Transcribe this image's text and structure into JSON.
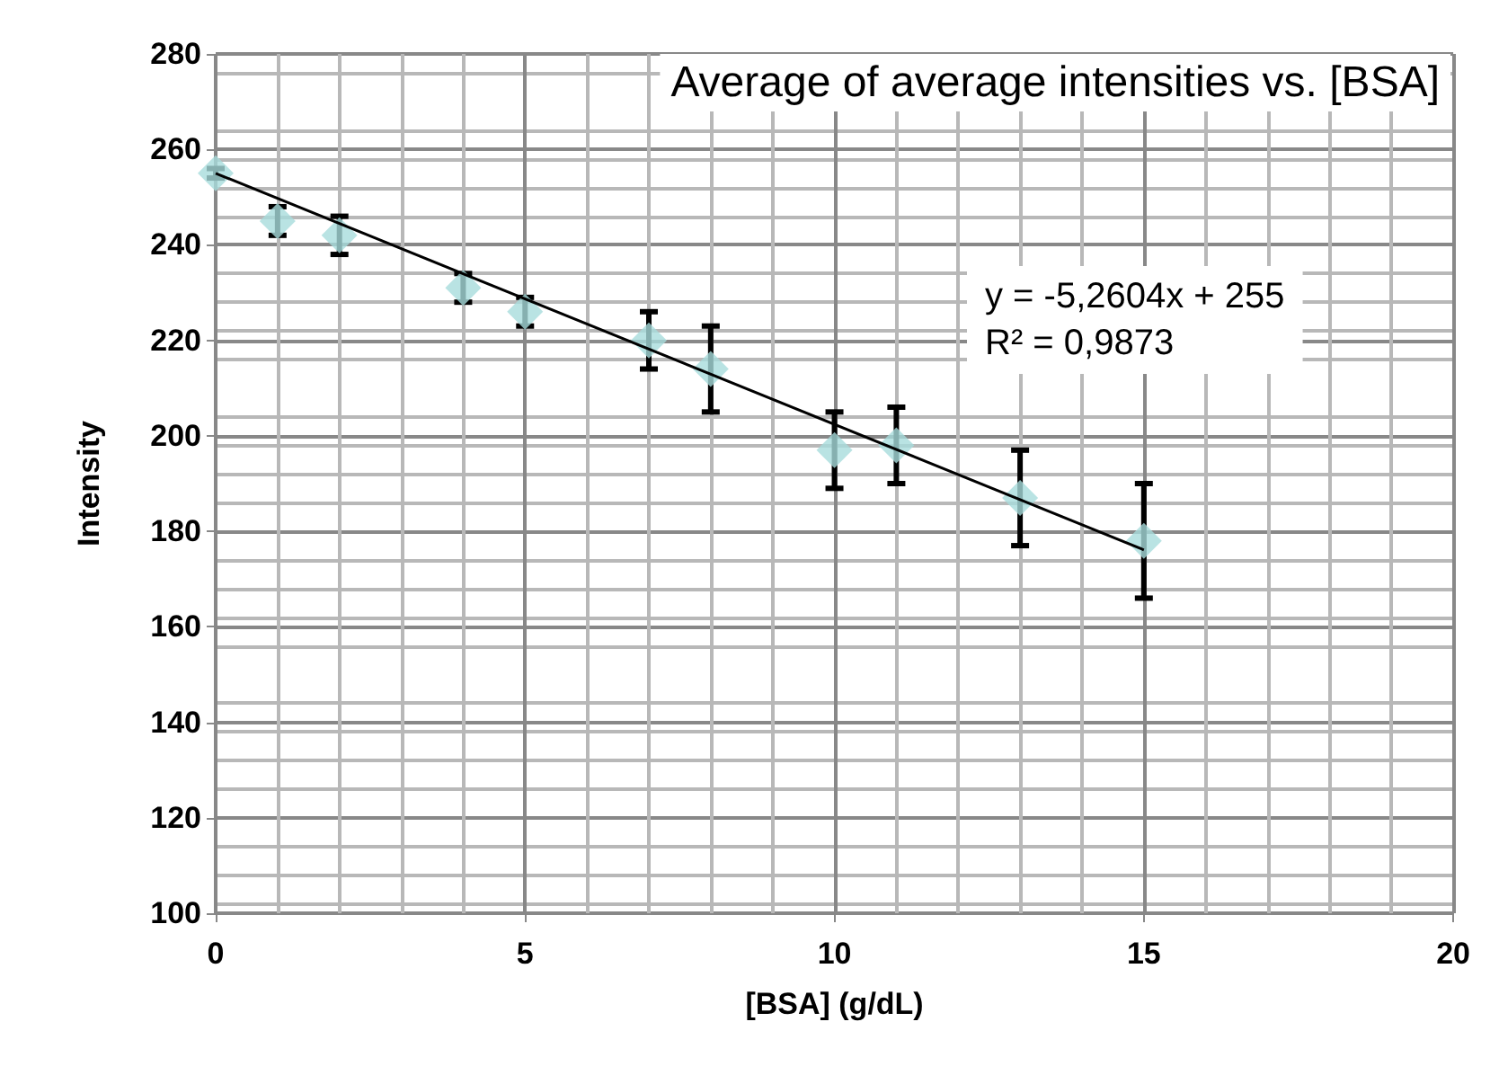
{
  "chart_data": {
    "type": "scatter",
    "title": "Average of average intensities vs. [BSA]",
    "xlabel": "[BSA] (g/dL)",
    "ylabel": "Intensity",
    "x": [
      0,
      1,
      2,
      4,
      5,
      7,
      8,
      10,
      11,
      13,
      15
    ],
    "series": [
      {
        "color": "#a8dcdc",
        "values": [
          255,
          245,
          242,
          231,
          226,
          220,
          214,
          197,
          198,
          187,
          178
        ],
        "errors": [
          1,
          3,
          4,
          3,
          3,
          6,
          9,
          8,
          8,
          10,
          12
        ],
        "marker": "diamond"
      },
      {
        "type": "line",
        "color": "#000000",
        "x": [
          0,
          15
        ],
        "values": [
          255,
          176.1
        ],
        "marker": "none",
        "line_style": "solid"
      }
    ],
    "annotations": [
      "y = -5,2604x + 255",
      "R² = 0,9873"
    ],
    "xlim": [
      0,
      20
    ],
    "xticks": [
      0,
      5,
      10,
      15,
      20
    ],
    "ylim": [
      100,
      280
    ],
    "yticks": [
      100,
      120,
      140,
      160,
      180,
      200,
      220,
      240,
      260,
      280
    ],
    "grid": true
  }
}
